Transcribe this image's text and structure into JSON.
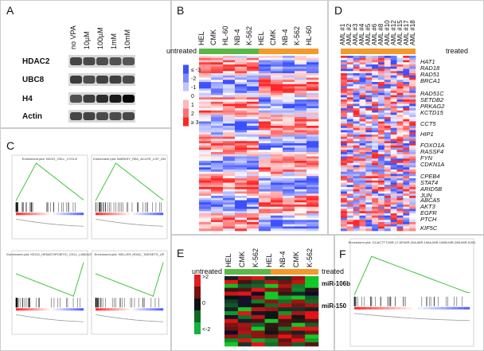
{
  "panels": {
    "a": {
      "label": "A",
      "columns": [
        "no VPA",
        "10µM",
        "100µM",
        "1mM",
        "10mM"
      ],
      "rows": [
        "HDAC2",
        "UBC8",
        "H4",
        "Actin"
      ]
    },
    "b": {
      "label": "B",
      "columns": [
        "HEL",
        "CMK",
        "HL-60",
        "NB-4",
        "K-562",
        "HEL",
        "CMK",
        "NB-4",
        "K-562",
        "HL-60"
      ],
      "group": "untreated",
      "legend": [
        "≤ -3",
        "-2",
        "-1",
        "0",
        "1",
        "2",
        "≥ 3"
      ]
    },
    "c": {
      "label": "C",
      "plots": [
        "Enrichment plot: KEGG_CELL_CYCLE",
        "Enrichment plot: MARKEY_RB1_ACUTE_LOF_DN",
        "Enrichment plot: KEGG_HEMATOPOIETIC_CELL_LINEAGE",
        "Enrichment plot: HELLER_HDAC_TARGETS_UP"
      ]
    },
    "d": {
      "label": "D",
      "columns": [
        "AML #1",
        "AML #2",
        "AML #3",
        "AML #4",
        "AML #5",
        "AML #6",
        "AML #8",
        "AML #10",
        "AML #12",
        "AML #15",
        "AML #17",
        "AML #18"
      ],
      "group": "treated",
      "genes": [
        "HAT1",
        "RAD18",
        "RAD51",
        "BRCA1",
        "RAD51C",
        "SETDB2",
        "PRKAG2",
        "KCTD15",
        "CCT5",
        "HIP1",
        "FOXO1A",
        "RASSF4",
        "FYN",
        "CDKN1A",
        "CPEB4",
        "STAT4",
        "ARID5B",
        "JUN",
        "ABCA5",
        "AKT3",
        "EGFR",
        "PTCH",
        "KIF5C"
      ]
    },
    "e": {
      "label": "E",
      "columns": [
        "HEL",
        "CMK",
        "K-562",
        "HEL",
        "NB-4",
        "CMK",
        "K-562"
      ],
      "groups": [
        "untreated",
        "treated"
      ],
      "rows": [
        "miR-106b",
        "miR-150"
      ],
      "legend": [
        ">2",
        "0",
        "<-2"
      ]
    },
    "f": {
      "label": "F",
      "plot": "Enrichment plot: GCACTTT,MIR-17-5P,MIR-20A,MIR-106A,MIR-106B,MIR-20B,MIR-519D"
    }
  }
}
